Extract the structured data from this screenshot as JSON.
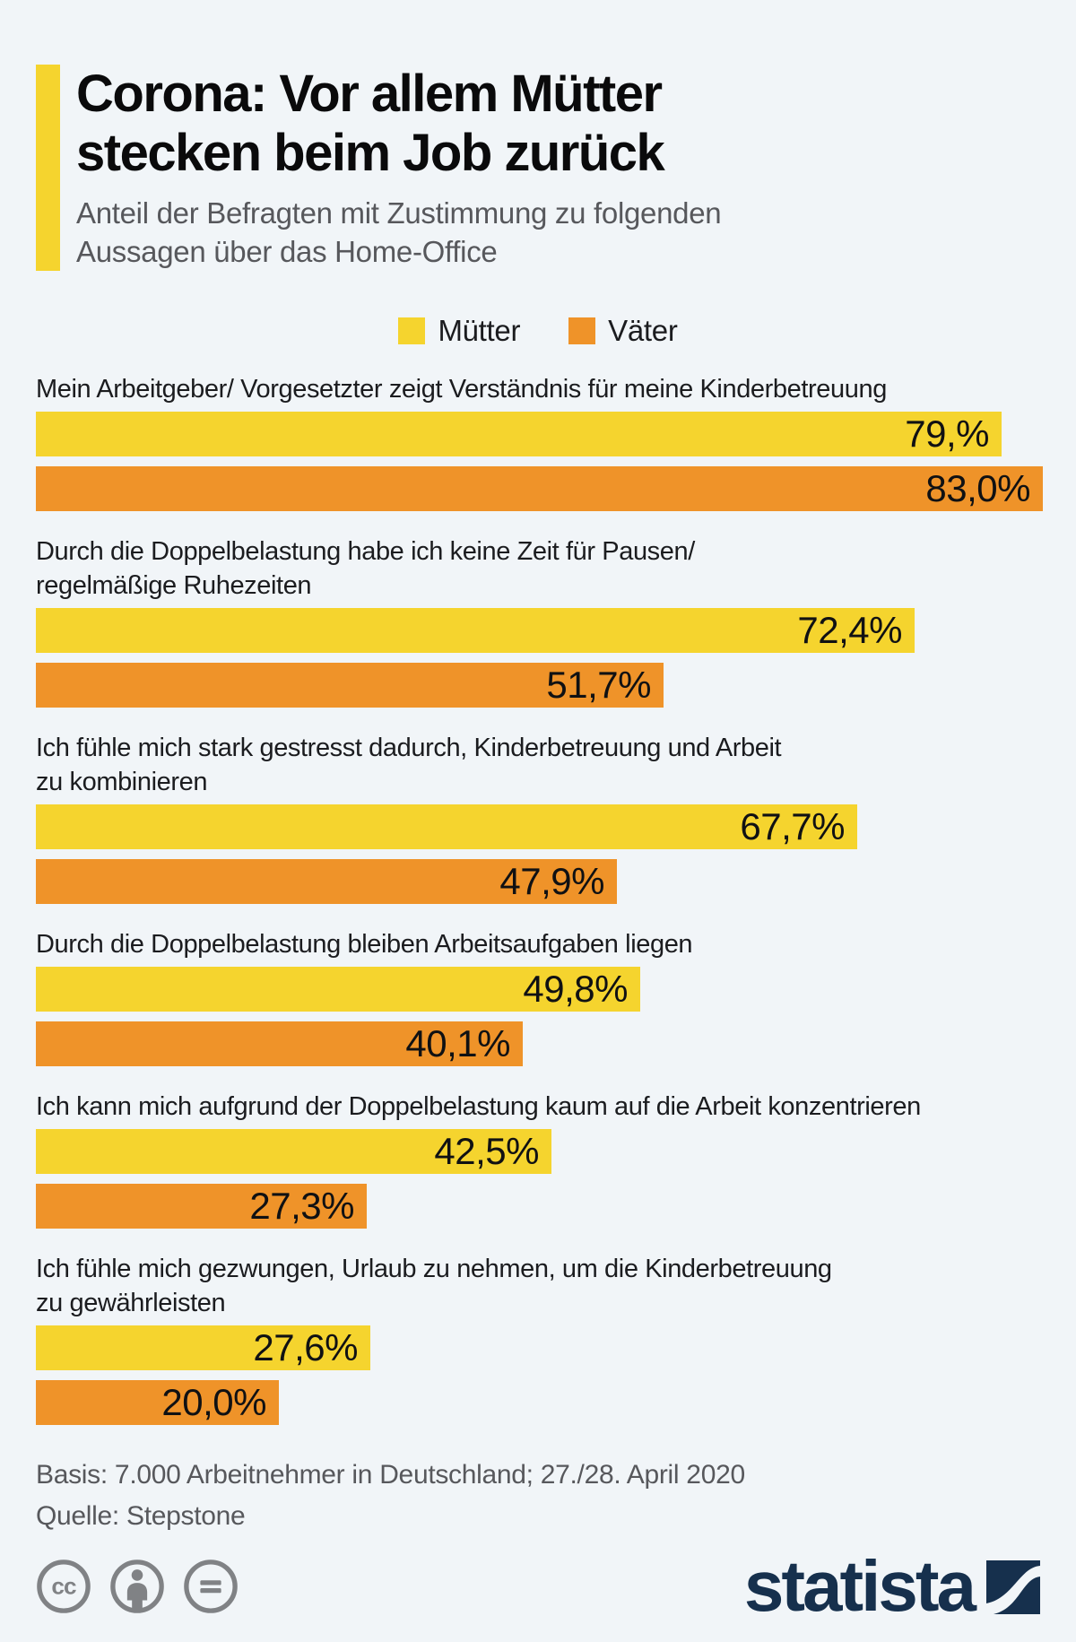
{
  "header": {
    "title": "Corona: Vor allem Mütter stecken beim Job zurück",
    "title_lines": [
      "Corona: Vor allem Mütter",
      "stecken beim Job zurück"
    ],
    "subtitle": "Anteil der Befragten mit Zustimmung zu folgenden Aussagen über das Home-Office",
    "subtitle_lines": [
      "Anteil der Befragten mit Zustimmung zu folgenden",
      "Aussagen über das Home-Office"
    ],
    "accent_color": "#F5D42E"
  },
  "chart_data": {
    "type": "bar",
    "orientation": "horizontal",
    "title": "Corona: Vor allem Mütter stecken beim Job zurück",
    "subtitle": "Anteil der Befragten mit Zustimmung zu folgenden Aussagen über das Home-Office",
    "unit": "%",
    "value_format": "german-decimal-comma",
    "legend": [
      "Mütter",
      "Väter"
    ],
    "legend_position": "top-center",
    "colors": {
      "Mütter": "#F5D42E",
      "Väter": "#EF9329"
    },
    "axis_hidden": true,
    "xlim": [
      0,
      100
    ],
    "groups": [
      {
        "statement": "Mein Arbeitgeber/ Vorgesetzter zeigt Verständnis für meine Kinderbetreuung",
        "bars": [
          {
            "series": "Mütter",
            "value": 79.6,
            "label": "79,%"
          },
          {
            "series": "Väter",
            "value": 83.0,
            "label": "83,0%"
          }
        ],
        "label_note": "source graphic label reads '79,%' (digit after comma missing)"
      },
      {
        "statement": "Durch die Doppelbelastung habe ich keine Zeit für Pausen/\nregelmäßige Ruhezeiten",
        "bars": [
          {
            "series": "Mütter",
            "value": 72.4,
            "label": "72,4%"
          },
          {
            "series": "Väter",
            "value": 51.7,
            "label": "51,7%"
          }
        ]
      },
      {
        "statement": "Ich fühle mich stark gestresst dadurch, Kinderbetreuung und Arbeit\nzu kombinieren",
        "bars": [
          {
            "series": "Mütter",
            "value": 67.7,
            "label": "67,7%"
          },
          {
            "series": "Väter",
            "value": 47.9,
            "label": "47,9%"
          }
        ]
      },
      {
        "statement": "Durch die Doppelbelastung bleiben Arbeitsaufgaben liegen",
        "bars": [
          {
            "series": "Mütter",
            "value": 49.8,
            "label": "49,8%"
          },
          {
            "series": "Väter",
            "value": 40.1,
            "label": "40,1%"
          }
        ]
      },
      {
        "statement": "Ich kann mich aufgrund der Doppelbelastung kaum auf die Arbeit konzentrieren",
        "bars": [
          {
            "series": "Mütter",
            "value": 42.5,
            "label": "42,5%"
          },
          {
            "series": "Väter",
            "value": 27.3,
            "label": "27,3%"
          }
        ]
      },
      {
        "statement": "Ich fühle mich gezwungen, Urlaub zu nehmen, um die Kinderbetreuung\nzu gewährleisten",
        "bars": [
          {
            "series": "Mütter",
            "value": 27.6,
            "label": "27,6%"
          },
          {
            "series": "Väter",
            "value": 20.0,
            "label": "20,0%"
          }
        ]
      }
    ]
  },
  "footer": {
    "basis": "Basis: 7.000 Arbeitnehmer in Deutschland; 27./28. April 2020",
    "source": "Quelle: Stepstone",
    "license_icons": [
      "cc-icon",
      "attribution-icon",
      "no-derivatives-icon"
    ],
    "brand": "statista",
    "brand_color": "#16304D",
    "icon_color": "#808285",
    "background_color": "#F1F5F8"
  }
}
